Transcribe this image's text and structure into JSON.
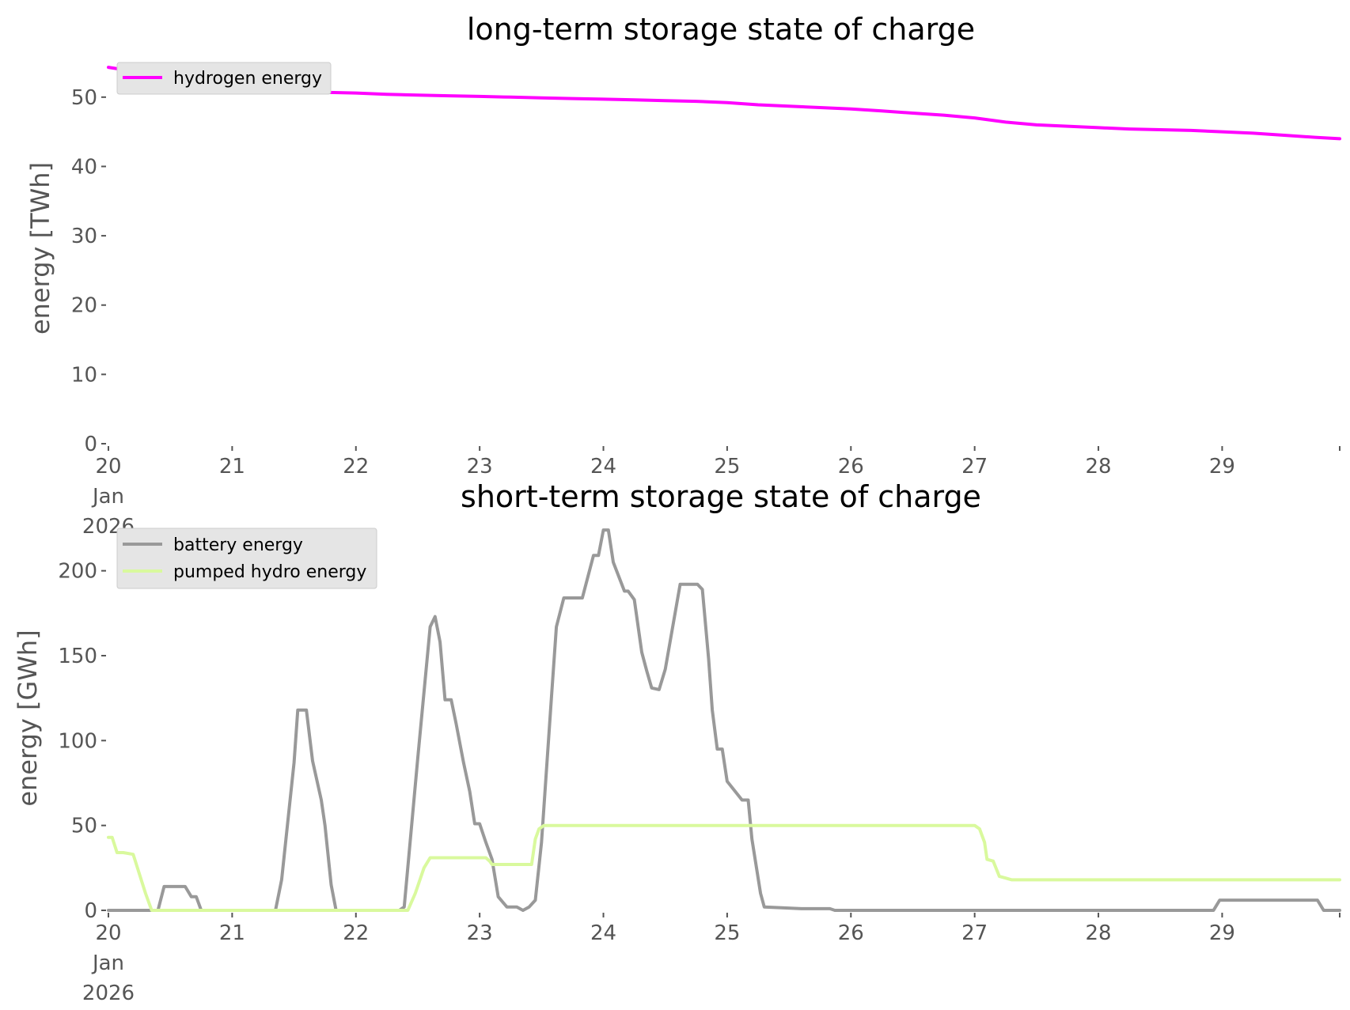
{
  "chart_data": [
    {
      "type": "line",
      "title": "long-term storage state of charge",
      "xlabel": "",
      "ylabel": "energy [TWh]",
      "xlim": [
        0,
        9.95
      ],
      "ylim": [
        0,
        55
      ],
      "grid": false,
      "legend": "top-left",
      "x_ticks": [
        {
          "x": 0,
          "lines": [
            "20",
            "Jan",
            "2026"
          ]
        },
        {
          "x": 1,
          "lines": [
            "21"
          ]
        },
        {
          "x": 2,
          "lines": [
            "22"
          ]
        },
        {
          "x": 3,
          "lines": [
            "23"
          ]
        },
        {
          "x": 4,
          "lines": [
            "24"
          ]
        },
        {
          "x": 5,
          "lines": [
            "25"
          ]
        },
        {
          "x": 6,
          "lines": [
            "26"
          ]
        },
        {
          "x": 7,
          "lines": [
            "27"
          ]
        },
        {
          "x": 8,
          "lines": [
            "28"
          ]
        },
        {
          "x": 9,
          "lines": [
            "29"
          ]
        }
      ],
      "y_ticks": [
        0,
        10,
        20,
        30,
        40,
        50
      ],
      "series": [
        {
          "name": "hydrogen energy",
          "color": "#ff00ff",
          "x": [
            0,
            0.25,
            0.5,
            0.75,
            1.0,
            1.25,
            1.5,
            1.75,
            2.0,
            2.25,
            2.5,
            2.75,
            3.0,
            3.25,
            3.5,
            3.75,
            4.0,
            4.25,
            4.5,
            4.75,
            5.0,
            5.25,
            5.5,
            5.75,
            6.0,
            6.25,
            6.5,
            6.75,
            7.0,
            7.25,
            7.5,
            7.75,
            8.0,
            8.25,
            8.5,
            8.75,
            9.0,
            9.25,
            9.5,
            9.75,
            9.95
          ],
          "y": [
            54.3,
            53.6,
            53.2,
            52.6,
            51.8,
            51.1,
            50.9,
            50.7,
            50.6,
            50.4,
            50.3,
            50.2,
            50.1,
            50.0,
            49.9,
            49.8,
            49.7,
            49.6,
            49.5,
            49.4,
            49.2,
            48.9,
            48.7,
            48.5,
            48.3,
            48.0,
            47.7,
            47.4,
            47.0,
            46.4,
            46.0,
            45.8,
            45.6,
            45.4,
            45.3,
            45.2,
            45.0,
            44.8,
            44.5,
            44.2,
            44.0
          ]
        }
      ]
    },
    {
      "type": "line",
      "title": "short-term storage state of charge",
      "xlabel": "",
      "ylabel": "energy [GWh]",
      "xlim": [
        0,
        9.95
      ],
      "ylim": [
        0,
        225
      ],
      "grid": false,
      "legend": "top-left",
      "x_ticks": [
        {
          "x": 0,
          "lines": [
            "20",
            "Jan",
            "2026"
          ]
        },
        {
          "x": 1,
          "lines": [
            "21"
          ]
        },
        {
          "x": 2,
          "lines": [
            "22"
          ]
        },
        {
          "x": 3,
          "lines": [
            "23"
          ]
        },
        {
          "x": 4,
          "lines": [
            "24"
          ]
        },
        {
          "x": 5,
          "lines": [
            "25"
          ]
        },
        {
          "x": 6,
          "lines": [
            "26"
          ]
        },
        {
          "x": 7,
          "lines": [
            "27"
          ]
        },
        {
          "x": 8,
          "lines": [
            "28"
          ]
        },
        {
          "x": 9,
          "lines": [
            "29"
          ]
        }
      ],
      "y_ticks": [
        0,
        50,
        100,
        150,
        200
      ],
      "series": [
        {
          "name": "battery energy",
          "color": "#999999",
          "x": [
            0,
            0.4,
            0.45,
            0.62,
            0.67,
            0.71,
            0.75,
            1.35,
            1.4,
            1.5,
            1.53,
            1.6,
            1.65,
            1.72,
            1.75,
            1.8,
            1.84,
            2.35,
            2.39,
            2.5,
            2.6,
            2.64,
            2.68,
            2.72,
            2.77,
            2.81,
            2.87,
            2.92,
            2.96,
            3.0,
            3.05,
            3.1,
            3.15,
            3.22,
            3.3,
            3.35,
            3.4,
            3.45,
            3.5,
            3.58,
            3.62,
            3.68,
            3.79,
            3.83,
            3.92,
            3.96,
            4.0,
            4.04,
            4.08,
            4.17,
            4.2,
            4.25,
            4.31,
            4.35,
            4.39,
            4.45,
            4.5,
            4.62,
            4.66,
            4.76,
            4.8,
            4.85,
            4.88,
            4.92,
            4.96,
            5.0,
            5.12,
            5.17,
            5.2,
            5.27,
            5.3,
            5.6,
            5.83,
            5.87,
            8.93,
            8.98,
            9.72,
            9.77,
            9.82,
            9.95
          ],
          "y": [
            0,
            0,
            14,
            14,
            8,
            8,
            0,
            0,
            18,
            87,
            118,
            118,
            88,
            65,
            50,
            15,
            0,
            0,
            2,
            90,
            167,
            173,
            158,
            124,
            124,
            110,
            87,
            70,
            51,
            51,
            40,
            30,
            8,
            2,
            2,
            0,
            2,
            6,
            40,
            125,
            167,
            184,
            184,
            184,
            209,
            209,
            224,
            224,
            205,
            188,
            188,
            183,
            152,
            141,
            131,
            130,
            142,
            192,
            192,
            192,
            189,
            148,
            118,
            95,
            95,
            76,
            65,
            65,
            42,
            10,
            2,
            1,
            1,
            0,
            0,
            6,
            6,
            6,
            0,
            0
          ]
        },
        {
          "name": "pumped hydro energy",
          "color": "#d9f99d",
          "x": [
            0,
            0.03,
            0.07,
            0.12,
            0.2,
            0.3,
            0.35,
            2.35,
            2.42,
            2.48,
            2.55,
            2.6,
            2.65,
            3.0,
            3.05,
            3.08,
            3.1,
            3.42,
            3.45,
            3.48,
            3.52,
            7.0,
            7.04,
            7.08,
            7.1,
            7.15,
            7.2,
            7.25,
            7.3,
            9.95
          ],
          "y": [
            43,
            43,
            34,
            34,
            33,
            10,
            0,
            0,
            0,
            10,
            25,
            31,
            31,
            31,
            31,
            29,
            27,
            27,
            42,
            48,
            50,
            50,
            48,
            40,
            30,
            29,
            20,
            19,
            18,
            18
          ]
        }
      ]
    }
  ]
}
